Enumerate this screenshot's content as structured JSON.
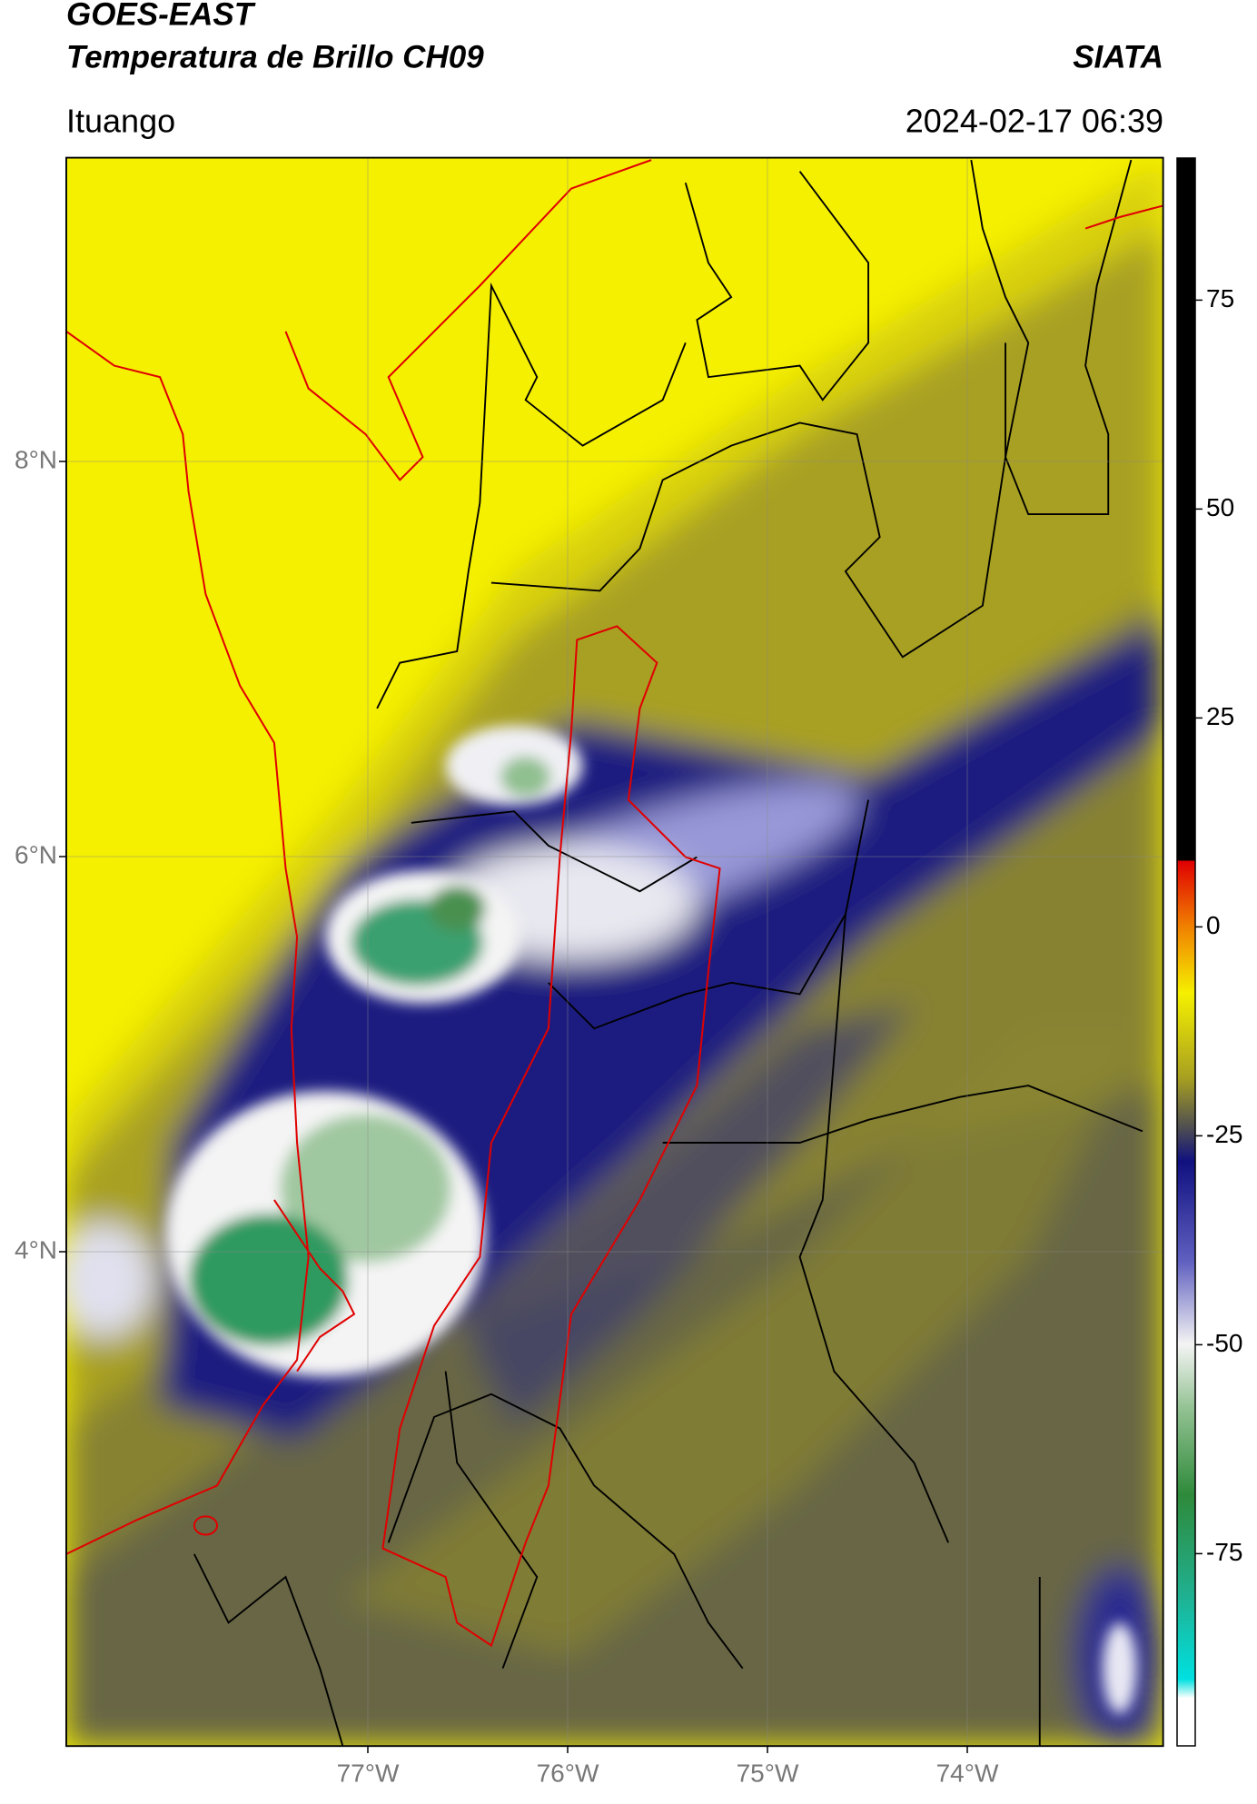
{
  "header": {
    "title_line1": "GOES-EAST",
    "title_line2": "Temperatura de Brillo CH09",
    "org": "SIATA",
    "location": "Ituango",
    "datetime": "2024-02-17 06:39"
  },
  "map": {
    "lat_ticks": [
      {
        "value": 8,
        "label": "8°N"
      },
      {
        "value": 6,
        "label": "6°N"
      },
      {
        "value": 4,
        "label": "4°N"
      }
    ],
    "lon_ticks": [
      {
        "value": -77,
        "label": "77°W"
      },
      {
        "value": -76,
        "label": "76°W"
      },
      {
        "value": -75,
        "label": "75°W"
      },
      {
        "value": -74,
        "label": "74°W"
      }
    ]
  },
  "colorbar": {
    "range": [
      -98,
      92
    ],
    "ticks": [
      75,
      50,
      25,
      0,
      -25,
      -50,
      -75
    ]
  }
}
